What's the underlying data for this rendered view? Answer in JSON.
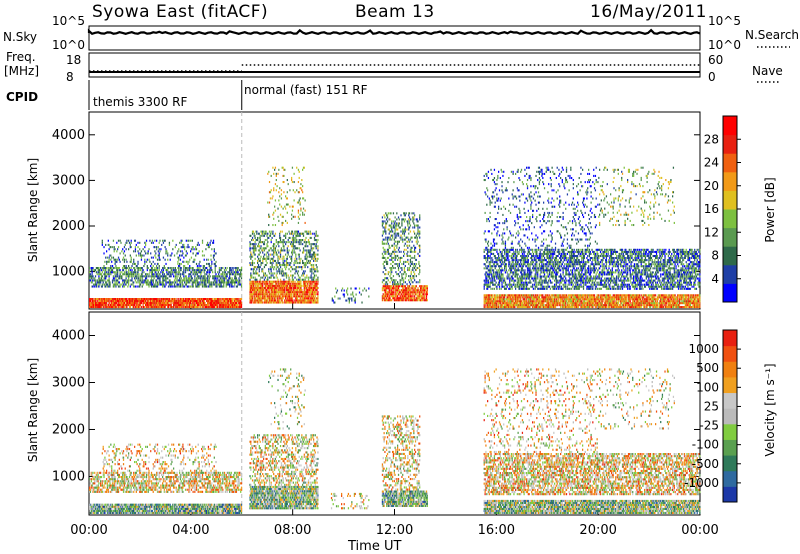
{
  "header": {
    "title": "Syowa East (fitACF)",
    "beam": "Beam 13",
    "date": "16/May/2011"
  },
  "sky_panel": {
    "left_label": "N.Sky",
    "right_label": "N.Search",
    "left_ticks": [
      "10^5",
      "10^0"
    ],
    "right_ticks": [
      "10^5",
      "10^0"
    ]
  },
  "freq_panel": {
    "left_label_1": "Freq.",
    "left_label_2": "[MHz]",
    "left_ticks": [
      "18",
      "8"
    ],
    "right_label": "Nave",
    "right_ticks": [
      "60",
      "0"
    ]
  },
  "cpid_panel": {
    "label": "CPID",
    "modes": [
      {
        "text": "themis 3300 RF",
        "start_hour": 0
      },
      {
        "text": "normal (fast) 151 RF",
        "start_hour": 6
      }
    ]
  },
  "chart_data": [
    {
      "type": "heatmap",
      "name": "power",
      "ylabel": "Slant Range [km]",
      "ylim": [
        180,
        4500
      ],
      "yticks": [
        1000,
        2000,
        3000,
        4000
      ],
      "xlim": [
        0,
        24
      ],
      "colorbar_label": "Power [dB]",
      "colorbar_ticks": [
        "28",
        "24",
        "20",
        "16",
        "12",
        "8",
        "4"
      ],
      "colorscale": [
        "#0000ff",
        "#1f3fa6",
        "#2f6a4a",
        "#5a9a50",
        "#7dc040",
        "#e0c020",
        "#f29a18",
        "#f06010",
        "#e82010",
        "#ff0000"
      ]
    },
    {
      "type": "heatmap",
      "name": "velocity",
      "ylabel": "Slant Range [km]",
      "ylim": [
        180,
        4500
      ],
      "yticks": [
        1000,
        2000,
        3000,
        4000
      ],
      "xlim": [
        0,
        24
      ],
      "colorbar_label": "Velocity [m s⁻¹]",
      "colorbar_ticks": [
        "1000",
        "500",
        "100",
        "25",
        "-25",
        "-100",
        "-500",
        "-1000"
      ],
      "colorscale": [
        "#1c38a8",
        "#2f6aa0",
        "#2f7a5a",
        "#5aa050",
        "#80cc40",
        "#bbbbbb",
        "#c8c8c8",
        "#f0a020",
        "#f08010",
        "#f05010",
        "#e82010"
      ]
    }
  ],
  "x_axis": {
    "label": "Time UT",
    "ticks": [
      "00:00",
      "04:00",
      "08:00",
      "12:00",
      "16:00",
      "20:00",
      "00:00"
    ],
    "tick_hours": [
      0,
      4,
      8,
      12,
      16,
      20,
      24
    ]
  }
}
